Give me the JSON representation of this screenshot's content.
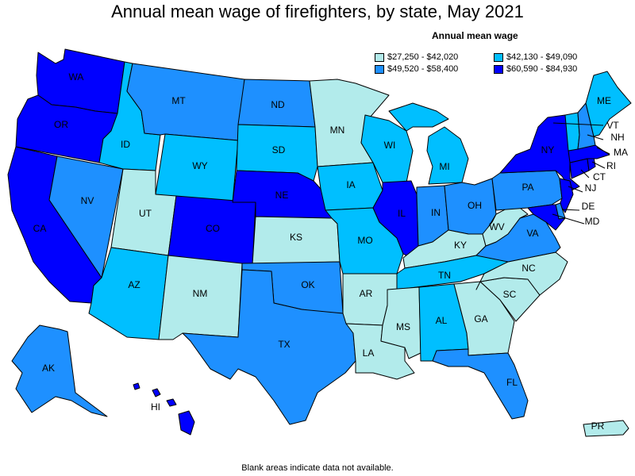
{
  "title": "Annual mean wage of firefighters, by state, May 2021",
  "legend": {
    "title": "Annual mean wage",
    "bins": [
      {
        "label": "$27,250 - $42,020",
        "color": "#b2ebeb"
      },
      {
        "label": "$42,130 - $49,090",
        "color": "#00bfff"
      },
      {
        "label": "$49,520 - $58,400",
        "color": "#1e90ff"
      },
      {
        "label": "$60,590 - $84,930",
        "color": "#0000ff"
      }
    ]
  },
  "states": {
    "WA": 3,
    "OR": 3,
    "CA": 3,
    "NV": 2,
    "ID": 1,
    "MT": 2,
    "WY": 1,
    "UT": 0,
    "AZ": 1,
    "CO": 3,
    "NM": 0,
    "ND": 2,
    "SD": 1,
    "NE": 3,
    "KS": 0,
    "OK": 2,
    "TX": 2,
    "MN": 0,
    "IA": 1,
    "MO": 1,
    "AR": 0,
    "LA": 0,
    "WI": 1,
    "IL": 3,
    "MI": 1,
    "IN": 2,
    "OH": 2,
    "KY": 0,
    "TN": 1,
    "MS": 0,
    "AL": 1,
    "GA": 0,
    "FL": 2,
    "SC": 0,
    "NC": 0,
    "VA": 2,
    "WV": 0,
    "PA": 2,
    "NY": 3,
    "NJ": 3,
    "DE": 2,
    "MD": 3,
    "CT": 3,
    "RI": 3,
    "MA": 3,
    "VT": 1,
    "NH": 2,
    "ME": 1,
    "AK": 2,
    "HI": 3,
    "PR": 0
  },
  "footnote": "Blank areas indicate data not available."
}
